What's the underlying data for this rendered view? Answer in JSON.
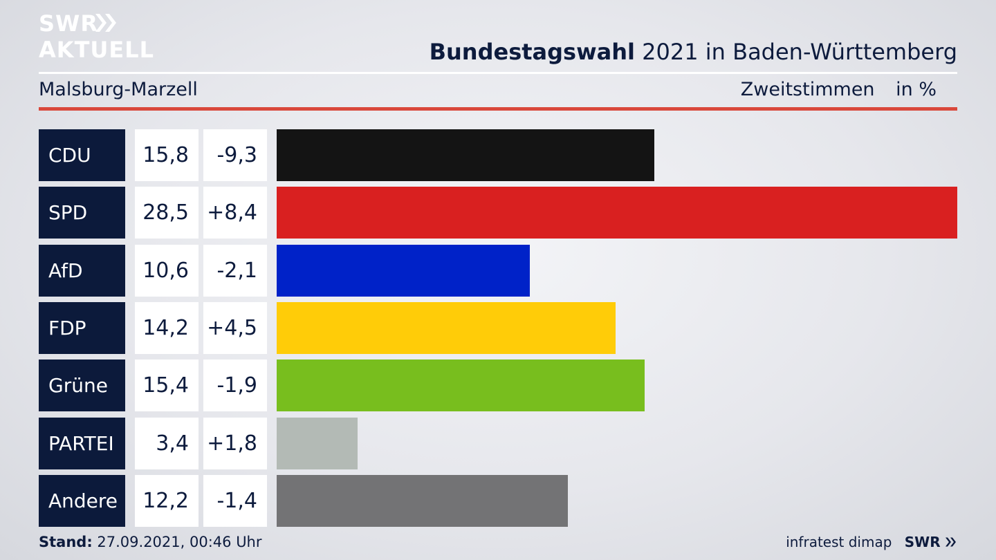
{
  "logo": {
    "line1": "SWR",
    "line2": "AKTUELL"
  },
  "header": {
    "title_bold": "Bundestagswahl",
    "title_rest": "2021 in Baden-Württemberg",
    "location": "Malsburg-Marzell",
    "measure": "Zweitstimmen",
    "unit": "in %"
  },
  "chart_data": {
    "type": "bar",
    "orientation": "horizontal",
    "categories": [
      "CDU",
      "SPD",
      "AfD",
      "FDP",
      "Grüne",
      "PARTEI",
      "Andere"
    ],
    "values": [
      15.8,
      28.5,
      10.6,
      14.2,
      15.4,
      3.4,
      12.2
    ],
    "value_labels": [
      "15,8",
      "28,5",
      "10,6",
      "14,2",
      "15,4",
      "3,4",
      "12,2"
    ],
    "changes": [
      -9.3,
      8.4,
      -2.1,
      4.5,
      -1.9,
      1.8,
      -1.4
    ],
    "change_labels": [
      "-9,3",
      "+8,4",
      "-2,1",
      "+4,5",
      "-1,9",
      "+1,8",
      "-1,4"
    ],
    "colors": [
      "#141414",
      "#d92020",
      "#0022c8",
      "#ffcc08",
      "#78be1e",
      "#b3bab5",
      "#737375"
    ],
    "xlim": [
      0,
      28.5
    ],
    "grid": false,
    "legend": "none"
  },
  "footer": {
    "stand_label": "Stand:",
    "stand_value": "27.09.2021, 00:46 Uhr",
    "source": "infratest dimap",
    "brand": "SWR"
  }
}
